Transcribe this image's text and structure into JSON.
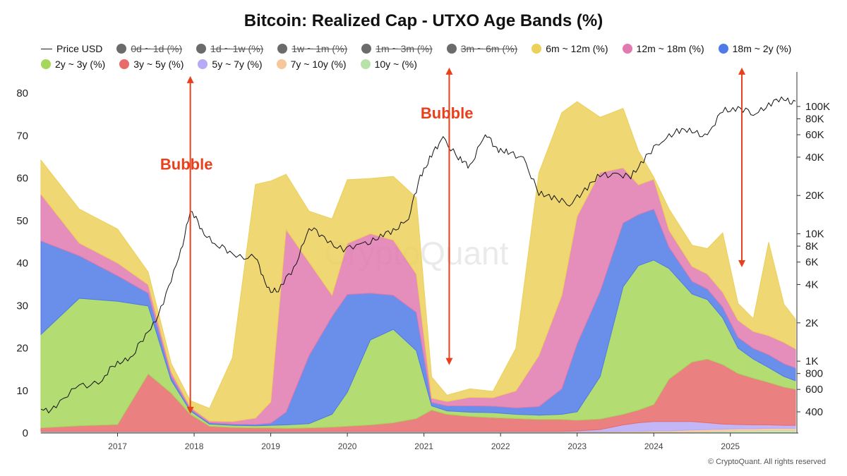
{
  "title": "Bitcoin: Realized Cap - UTXO Age Bands (%)",
  "watermark": "CryptoQuant",
  "copyright": "© CryptoQuant. All rights reserved",
  "annotation_color": "#e8401c",
  "legend": {
    "row1": [
      {
        "label": "Price USD",
        "type": "line",
        "color": "#222222",
        "hidden": false
      },
      {
        "label": "0d ~ 1d (%)",
        "type": "dot",
        "color": "#6b6b6b",
        "hidden": true
      },
      {
        "label": "1d ~ 1w (%)",
        "type": "dot",
        "color": "#6b6b6b",
        "hidden": true
      },
      {
        "label": "1w ~ 1m (%)",
        "type": "dot",
        "color": "#6b6b6b",
        "hidden": true
      },
      {
        "label": "1m ~ 3m (%)",
        "type": "dot",
        "color": "#6b6b6b",
        "hidden": true
      },
      {
        "label": "3m ~ 6m (%)",
        "type": "dot",
        "color": "#6b6b6b",
        "hidden": true
      },
      {
        "label": "6m ~ 12m (%)",
        "type": "dot",
        "color": "#ecd05a",
        "hidden": false
      },
      {
        "label": "12m ~ 18m (%)",
        "type": "dot",
        "color": "#e07ab0",
        "hidden": false
      },
      {
        "label": "18m ~ 2y (%)",
        "type": "dot",
        "color": "#4f7be8",
        "hidden": false
      }
    ],
    "row2": [
      {
        "label": "2y ~ 3y (%)",
        "type": "dot",
        "color": "#a6d65a",
        "hidden": false
      },
      {
        "label": "3y ~ 5y (%)",
        "type": "dot",
        "color": "#e86a6a",
        "hidden": false
      },
      {
        "label": "5y ~ 7y (%)",
        "type": "dot",
        "color": "#b7a9f5",
        "hidden": false
      },
      {
        "label": "7y ~ 10y (%)",
        "type": "dot",
        "color": "#f5c79a",
        "hidden": false
      },
      {
        "label": "10y ~ (%)",
        "type": "dot",
        "color": "#b8e3a8",
        "hidden": false
      }
    ]
  },
  "chart_data": {
    "type": "area",
    "stacked": true,
    "x_ticks": [
      "2017",
      "2018",
      "2019",
      "2020",
      "2021",
      "2022",
      "2023",
      "2024",
      "2025"
    ],
    "x_tick_values": [
      2017.0,
      2018.0,
      2019.0,
      2020.0,
      2021.0,
      2022.0,
      2023.0,
      2024.0,
      2025.0
    ],
    "xlim": [
      2016.0,
      2025.85
    ],
    "y_left": {
      "ticks": [
        "0",
        "10",
        "20",
        "30",
        "40",
        "50",
        "60",
        "70",
        "80"
      ],
      "lim": [
        0,
        80
      ]
    },
    "y_right": {
      "scale": "log",
      "ticks": [
        "400",
        "600",
        "800",
        "1K",
        "2K",
        "4K",
        "6K",
        "8K",
        "10K",
        "20K",
        "40K",
        "60K",
        "80K",
        "100K"
      ],
      "tick_values": [
        400,
        600,
        800,
        1000,
        2000,
        4000,
        6000,
        8000,
        10000,
        20000,
        40000,
        60000,
        80000,
        100000
      ]
    },
    "x": [
      2016.0,
      2016.5,
      2017.0,
      2017.4,
      2017.7,
      2017.95,
      2018.2,
      2018.5,
      2018.8,
      2019.0,
      2019.2,
      2019.5,
      2019.8,
      2020.0,
      2020.3,
      2020.6,
      2020.9,
      2021.1,
      2021.3,
      2021.6,
      2021.9,
      2022.2,
      2022.5,
      2022.8,
      2023.0,
      2023.3,
      2023.6,
      2023.8,
      2024.0,
      2024.2,
      2024.5,
      2024.7,
      2024.9,
      2025.1,
      2025.3,
      2025.5,
      2025.7,
      2025.85
    ],
    "series": [
      {
        "name": "10y ~ (%)",
        "color": "#b8e3a8",
        "values": [
          0.2,
          0.2,
          0.2,
          0.2,
          0.2,
          0.2,
          0.2,
          0.2,
          0.2,
          0.2,
          0.2,
          0.2,
          0.2,
          0.2,
          0.2,
          0.2,
          0.2,
          0.2,
          0.2,
          0.2,
          0.2,
          0.2,
          0.2,
          0.2,
          0.2,
          0.2,
          0.2,
          0.2,
          0.2,
          0.2,
          0.3,
          0.3,
          0.4,
          0.5,
          0.5,
          0.6,
          0.6,
          0.6
        ]
      },
      {
        "name": "7y ~ 10y (%)",
        "color": "#f5c79a",
        "values": [
          0.1,
          0.1,
          0.1,
          0.1,
          0.1,
          0.1,
          0.1,
          0.1,
          0.1,
          0.1,
          0.1,
          0.1,
          0.1,
          0.1,
          0.1,
          0.1,
          0.1,
          0.1,
          0.1,
          0.1,
          0.1,
          0.1,
          0.1,
          0.1,
          0.1,
          0.1,
          0.2,
          0.2,
          0.3,
          0.3,
          0.4,
          0.5,
          0.5,
          0.5,
          0.5,
          0.5,
          0.5,
          0.5
        ]
      },
      {
        "name": "5y ~ 7y (%)",
        "color": "#b7a9f5",
        "values": [
          0.1,
          0.1,
          0.1,
          0.1,
          0.1,
          0.1,
          0.1,
          0.1,
          0.1,
          0.1,
          0.1,
          0.1,
          0.1,
          0.1,
          0.1,
          0.1,
          0.1,
          0.1,
          0.1,
          0.1,
          0.1,
          0.1,
          0.1,
          0.1,
          0.2,
          0.5,
          1.5,
          2.0,
          2.2,
          2.2,
          2.0,
          1.6,
          1.2,
          1.0,
          0.9,
          0.8,
          0.7,
          0.7
        ]
      },
      {
        "name": "3y ~ 5y (%)",
        "color": "#e86a6a",
        "values": [
          0.8,
          1.3,
          1.6,
          13.5,
          9.0,
          4.0,
          1.2,
          0.9,
          0.8,
          0.8,
          0.7,
          0.8,
          1.0,
          1.2,
          1.5,
          2.0,
          3.0,
          5.0,
          4.0,
          3.5,
          3.2,
          3.0,
          2.8,
          2.8,
          2.5,
          2.5,
          2.5,
          3.0,
          4.0,
          10.0,
          14.0,
          15.0,
          14.0,
          12.0,
          11.0,
          10.0,
          9.0,
          8.5
        ]
      },
      {
        "name": "2y ~ 3y (%)",
        "color": "#a6d65a",
        "values": [
          22.0,
          30.0,
          29.0,
          16.0,
          3.0,
          0.8,
          0.5,
          0.5,
          0.5,
          0.6,
          0.8,
          1.0,
          3.0,
          8.0,
          20.0,
          22.0,
          16.0,
          1.0,
          0.8,
          1.0,
          1.2,
          1.0,
          1.0,
          1.2,
          2.0,
          10.0,
          30.0,
          34.0,
          34.0,
          26.0,
          16.0,
          14.0,
          11.0,
          6.0,
          4.5,
          3.5,
          2.5,
          2.0
        ]
      },
      {
        "name": "18m ~ 2y (%)",
        "color": "#4f7be8",
        "values": [
          22.0,
          10.0,
          6.0,
          3.0,
          1.0,
          0.4,
          0.3,
          0.3,
          0.3,
          0.5,
          3.0,
          16.0,
          23.0,
          23.0,
          11.0,
          8.0,
          9.0,
          0.8,
          1.2,
          1.5,
          1.5,
          1.5,
          2.0,
          6.0,
          16.0,
          20.0,
          15.0,
          12.0,
          12.0,
          5.0,
          3.0,
          2.5,
          2.5,
          2.5,
          2.5,
          3.0,
          3.0,
          3.0
        ]
      },
      {
        "name": "12m ~ 18m (%)",
        "color": "#e07ab0",
        "values": [
          11.0,
          3.0,
          3.0,
          2.0,
          1.0,
          0.5,
          0.4,
          0.6,
          1.5,
          5.0,
          43.0,
          22.0,
          5.0,
          12.0,
          14.0,
          13.0,
          9.0,
          1.0,
          1.0,
          2.0,
          2.0,
          4.0,
          12.0,
          22.0,
          30.0,
          28.0,
          13.0,
          7.0,
          7.0,
          4.0,
          3.5,
          3.5,
          3.5,
          4.0,
          4.0,
          4.5,
          5.0,
          4.5
        ]
      },
      {
        "name": "6m ~ 12m (%)",
        "color": "#ecd05a",
        "values": [
          8.0,
          8.0,
          8.0,
          3.0,
          2.0,
          1.5,
          3.0,
          15.0,
          55.0,
          52.0,
          13.0,
          12.0,
          18.0,
          15.0,
          13.0,
          15.0,
          18.0,
          5.0,
          1.5,
          2.0,
          1.5,
          10.0,
          43.0,
          43.0,
          27.0,
          13.0,
          14.0,
          8.0,
          0.5,
          5.0,
          5.0,
          6.0,
          14.0,
          4.0,
          3.0,
          22.0,
          9.0,
          7.0
        ]
      }
    ],
    "price": {
      "name": "Price USD",
      "x": [
        2016.0,
        2016.2,
        2016.5,
        2016.8,
        2017.0,
        2017.2,
        2017.4,
        2017.6,
        2017.8,
        2017.95,
        2018.1,
        2018.3,
        2018.5,
        2018.8,
        2018.95,
        2019.1,
        2019.3,
        2019.5,
        2019.7,
        2019.95,
        2020.2,
        2020.4,
        2020.6,
        2020.8,
        2020.95,
        2021.1,
        2021.25,
        2021.45,
        2021.6,
        2021.8,
        2021.95,
        2022.1,
        2022.3,
        2022.5,
        2022.7,
        2022.9,
        2023.1,
        2023.3,
        2023.5,
        2023.7,
        2023.9,
        2024.1,
        2024.3,
        2024.5,
        2024.7,
        2024.9,
        2025.1,
        2025.3,
        2025.5,
        2025.7,
        2025.85
      ],
      "values": [
        420,
        430,
        650,
        700,
        1000,
        1100,
        1700,
        2800,
        6500,
        15000,
        11000,
        8000,
        7000,
        6400,
        3800,
        3500,
        5500,
        11000,
        9500,
        7200,
        8500,
        9000,
        11000,
        13000,
        29000,
        40000,
        58000,
        38000,
        35000,
        60000,
        48000,
        42000,
        40000,
        20000,
        20000,
        16500,
        23000,
        28000,
        30000,
        27000,
        42000,
        52000,
        67000,
        62000,
        60000,
        90000,
        100000,
        85000,
        107000,
        112000,
        110000
      ]
    },
    "annotations": [
      {
        "text": "Bubble",
        "label_x": 2017.9,
        "label_y": 62
      },
      {
        "text": "Bubble",
        "label_x": 2021.3,
        "label_y": 74
      },
      {
        "text": "",
        "x": 2017.95,
        "y_from": 84,
        "y_to": 4.5
      },
      {
        "text": "",
        "x": 2021.33,
        "y_from": 86,
        "y_to": 16
      },
      {
        "text": "",
        "x": 2025.15,
        "y_from": 86,
        "y_to": 39
      }
    ]
  }
}
